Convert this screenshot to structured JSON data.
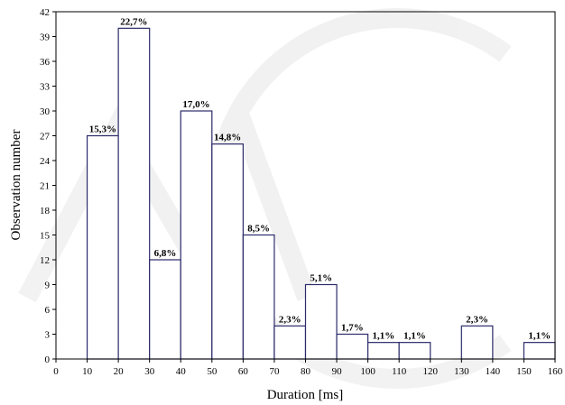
{
  "chart_data": {
    "type": "bar",
    "title": "",
    "xlabel": "Duration [ms]",
    "ylabel": "Observation number",
    "xlim": [
      0,
      160
    ],
    "ylim": [
      0,
      42
    ],
    "x_ticks": [
      "0",
      "10",
      "20",
      "30",
      "40",
      "50",
      "60",
      "70",
      "80",
      "90",
      "100",
      "110",
      "120",
      "130",
      "140",
      "150",
      "160"
    ],
    "y_ticks": [
      "0",
      "3",
      "6",
      "9",
      "12",
      "15",
      "18",
      "21",
      "24",
      "27",
      "30",
      "33",
      "36",
      "39",
      "42"
    ],
    "bins": [
      {
        "range": [
          10,
          20
        ],
        "value": 27,
        "label": "15,3%"
      },
      {
        "range": [
          20,
          30
        ],
        "value": 40,
        "label": "22,7%"
      },
      {
        "range": [
          30,
          40
        ],
        "value": 12,
        "label": "6,8%"
      },
      {
        "range": [
          40,
          50
        ],
        "value": 30,
        "label": "17,0%"
      },
      {
        "range": [
          50,
          60
        ],
        "value": 26,
        "label": "14,8%"
      },
      {
        "range": [
          60,
          70
        ],
        "value": 15,
        "label": "8,5%"
      },
      {
        "range": [
          70,
          80
        ],
        "value": 4,
        "label": "2,3%"
      },
      {
        "range": [
          80,
          90
        ],
        "value": 9,
        "label": "5,1%"
      },
      {
        "range": [
          90,
          100
        ],
        "value": 3,
        "label": "1,7%"
      },
      {
        "range": [
          100,
          110
        ],
        "value": 2,
        "label": "1,1%"
      },
      {
        "range": [
          110,
          120
        ],
        "value": 2,
        "label": "1,1%"
      },
      {
        "range": [
          130,
          140
        ],
        "value": 4,
        "label": "2,3%"
      },
      {
        "range": [
          150,
          160
        ],
        "value": 2,
        "label": "1,1%"
      }
    ],
    "grid": false,
    "legend": "none",
    "bar_stroke_color": "#2b2b6b"
  }
}
